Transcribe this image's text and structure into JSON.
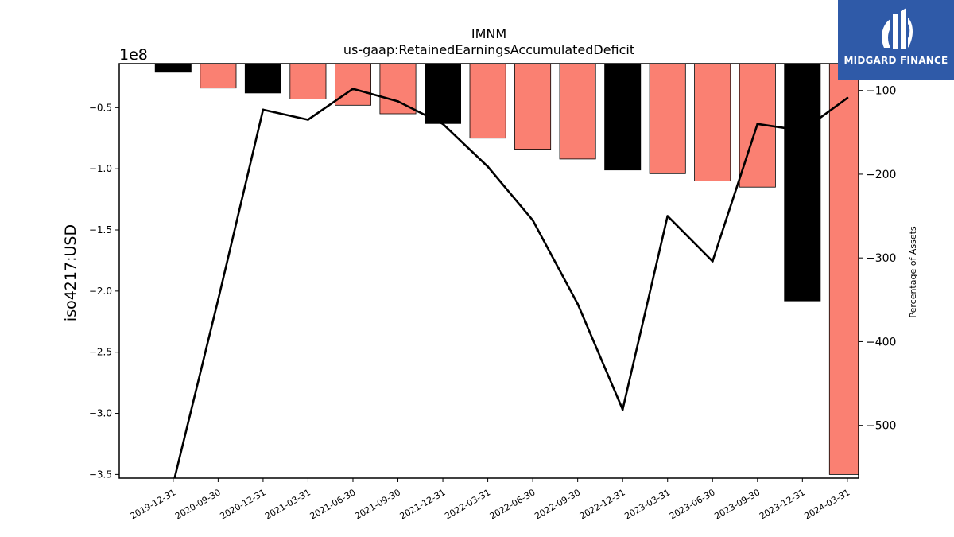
{
  "logo": {
    "text": "MIDGARD FINANCE",
    "color": "#2f5aa8"
  },
  "chart_data": {
    "type": "bar",
    "title": "IMNM",
    "subtitle": "us-gaap:RetainedEarningsAccumulatedDeficit",
    "ylabel": "iso4217:USD",
    "y2label": "Percentage of Assets",
    "y_offset_label": "1e8",
    "categories": [
      "2019-12-31",
      "2020-09-30",
      "2020-12-31",
      "2021-03-31",
      "2021-06-30",
      "2021-09-30",
      "2021-12-31",
      "2022-03-31",
      "2022-06-30",
      "2022-09-30",
      "2022-12-31",
      "2023-03-31",
      "2023-06-30",
      "2023-09-30",
      "2023-12-31",
      "2024-03-31"
    ],
    "series": [
      {
        "values": [
          -21000000,
          -34000000,
          -38000000,
          -43000000,
          -48000000,
          -55000000,
          -63000000,
          -75000000,
          -84000000,
          -92000000,
          -101000000,
          -104000000,
          -110000000,
          -115000000,
          -208000000,
          -350000000
        ],
        "colors": [
          "#000000",
          "#fa8072",
          "#000000",
          "#fa8072",
          "#fa8072",
          "#fa8072",
          "#000000",
          "#fa8072",
          "#fa8072",
          "#fa8072",
          "#000000",
          "#fa8072",
          "#fa8072",
          "#fa8072",
          "#000000",
          "#fa8072"
        ]
      },
      {
        "axis": "right",
        "type": "line",
        "color": "#000000",
        "values": [
          -570,
          -350,
          -123,
          -135,
          -98,
          -113,
          -140,
          -191,
          -255,
          -355,
          -481,
          -250,
          -304,
          -140,
          -148,
          -109
        ]
      }
    ],
    "ylim": [
      -353000000.0,
      -14000000.0
    ],
    "yticks": [
      -350000000.0,
      -300000000.0,
      -250000000.0,
      -200000000.0,
      -150000000.0,
      -100000000.0,
      -50000000.0
    ],
    "yticklabels": [
      "−3.5",
      "−3.0",
      "−2.5",
      "−2.0",
      "−1.5",
      "−1.0",
      "−0.5"
    ],
    "y2lim": [
      -563,
      -68
    ],
    "y2ticks": [
      -500,
      -400,
      -300,
      -200,
      -100
    ],
    "y2ticklabels": [
      "−500",
      "−400",
      "−300",
      "−200",
      "−100"
    ],
    "grid": false,
    "legend": "none"
  }
}
